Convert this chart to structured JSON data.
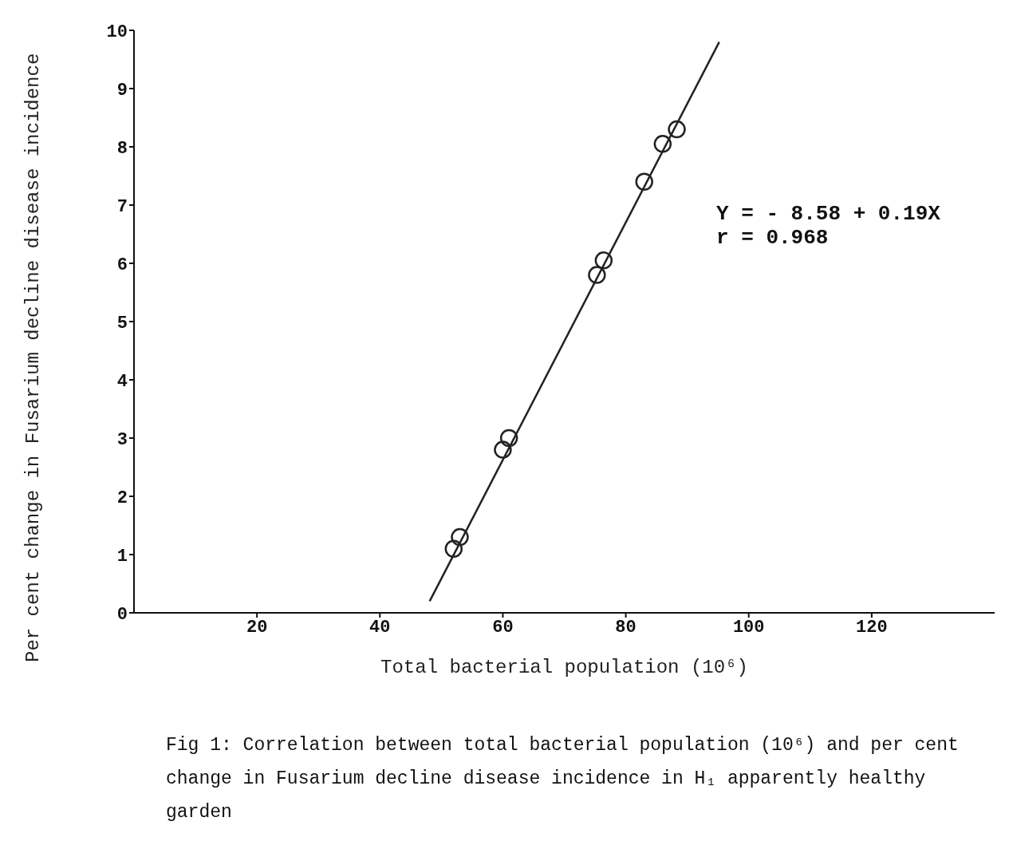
{
  "chart_data": {
    "type": "scatter",
    "xlabel": "Total bacterial population (10⁶)",
    "ylabel": "Per cent change in Fusarium decline disease incidence",
    "annotations": [
      "Y = - 8.58 + 0.19X",
      "r = 0.968",
      "Fig 1: Correlation between total bacterial population (10⁶) and per cent change in Fusarium decline disease incidence in H₁ apparently healthy garden"
    ],
    "series": [
      {
        "color": "#222222",
        "x": [
          52,
          53,
          60,
          61,
          75.3,
          76.4,
          83,
          86,
          88.3
        ],
        "values": [
          1.1,
          1.3,
          2.8,
          3.0,
          5.8,
          6.05,
          7.4,
          8.05,
          8.3
        ],
        "marker": "circle"
      },
      {
        "type": "line",
        "color": "#222222",
        "x": [
          48.1,
          95.2
        ],
        "values": [
          0.2,
          9.8
        ],
        "marker": "none",
        "line_style": "solid"
      }
    ],
    "xlim": [
      0,
      140
    ],
    "xticks": [
      20,
      40,
      60,
      80,
      100,
      120
    ],
    "ylim": [
      0,
      10
    ],
    "yticks": [
      0,
      1,
      2,
      3,
      4,
      5,
      6,
      7,
      8,
      9,
      10
    ],
    "grid": false,
    "legend": false
  }
}
